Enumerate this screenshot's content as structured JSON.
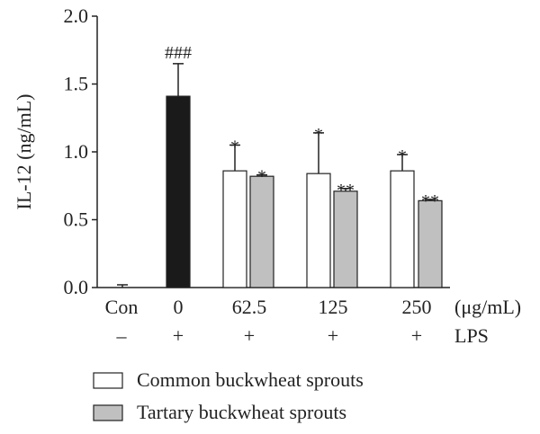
{
  "chart_data": {
    "type": "bar",
    "ylabel": "IL-12 (ng/mL)",
    "ylim": [
      0,
      2.0
    ],
    "yticks": [
      "0.0",
      "0.5",
      "1.0",
      "1.5",
      "2.0"
    ],
    "ytick_values": [
      0,
      0.5,
      1.0,
      1.5,
      2.0
    ],
    "categories": [
      "Con",
      "0",
      "62.5",
      "125",
      "250"
    ],
    "unit_label": "(μg/mL)",
    "lps_row": [
      "–",
      "+",
      "+",
      "+",
      "+"
    ],
    "lps_label": "LPS",
    "bars": [
      {
        "category": "Con",
        "series": "control",
        "value": 0.0,
        "error": 0.02,
        "annotation": "",
        "color": "#1a1a1a"
      },
      {
        "category": "0",
        "series": "lps",
        "value": 1.41,
        "error": 0.24,
        "annotation": "###",
        "color": "#1a1a1a"
      },
      {
        "category": "62.5",
        "series": "Common buckwheat sprouts",
        "value": 0.86,
        "error": 0.19,
        "annotation": "*",
        "color": "#ffffff"
      },
      {
        "category": "62.5",
        "series": "Tartary buckwheat sprouts",
        "value": 0.82,
        "error": 0.01,
        "annotation": "*",
        "color": "#c0c0c0"
      },
      {
        "category": "125",
        "series": "Common buckwheat sprouts",
        "value": 0.84,
        "error": 0.3,
        "annotation": "*",
        "color": "#ffffff"
      },
      {
        "category": "125",
        "series": "Tartary buckwheat sprouts",
        "value": 0.71,
        "error": 0.02,
        "annotation": "**",
        "color": "#c0c0c0"
      },
      {
        "category": "250",
        "series": "Common buckwheat sprouts",
        "value": 0.86,
        "error": 0.12,
        "annotation": "*",
        "color": "#ffffff"
      },
      {
        "category": "250",
        "series": "Tartary buckwheat sprouts",
        "value": 0.64,
        "error": 0.01,
        "annotation": "**",
        "color": "#c0c0c0"
      }
    ],
    "legend": [
      {
        "name": "Common buckwheat sprouts",
        "color": "#ffffff"
      },
      {
        "name": "Tartary buckwheat sprouts",
        "color": "#c0c0c0"
      }
    ],
    "grid": false,
    "legend_position": "bottom"
  }
}
